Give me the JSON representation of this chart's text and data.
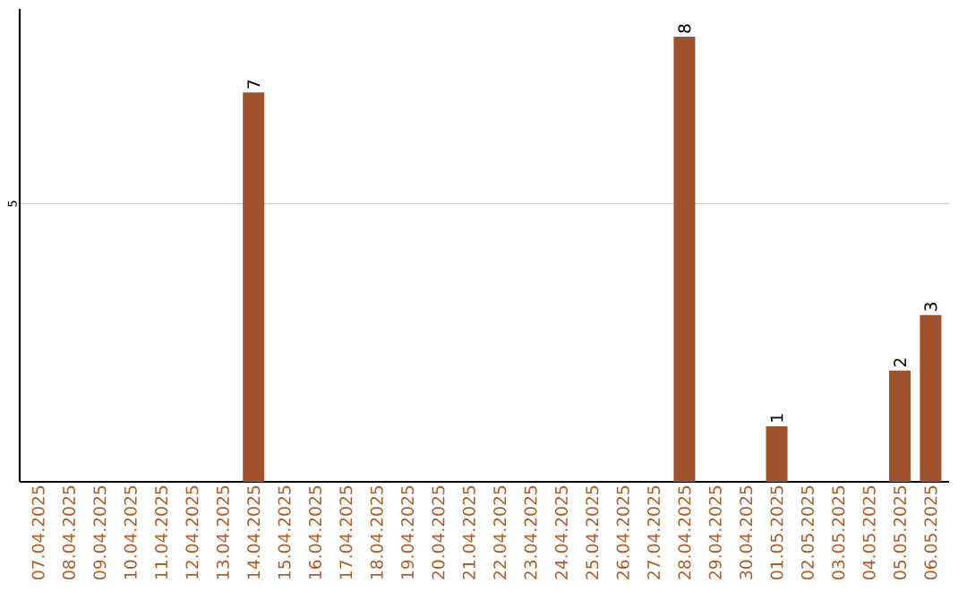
{
  "chart_data": {
    "type": "bar",
    "categories": [
      "07.04.2025",
      "08.04.2025",
      "09.04.2025",
      "10.04.2025",
      "11.04.2025",
      "12.04.2025",
      "13.04.2025",
      "14.04.2025",
      "15.04.2025",
      "16.04.2025",
      "17.04.2025",
      "18.04.2025",
      "19.04.2025",
      "20.04.2025",
      "21.04.2025",
      "22.04.2025",
      "23.04.2025",
      "24.04.2025",
      "25.04.2025",
      "26.04.2025",
      "27.04.2025",
      "28.04.2025",
      "29.04.2025",
      "30.04.2025",
      "01.05.2025",
      "02.05.2025",
      "03.05.2025",
      "04.05.2025",
      "05.05.2025",
      "06.05.2025"
    ],
    "values": [
      0,
      0,
      0,
      0,
      0,
      0,
      0,
      7,
      0,
      0,
      0,
      0,
      0,
      0,
      0,
      0,
      0,
      0,
      0,
      0,
      0,
      8,
      0,
      0,
      1,
      0,
      0,
      0,
      2,
      3
    ],
    "value_labels": [
      null,
      null,
      null,
      null,
      null,
      null,
      null,
      "7",
      null,
      null,
      null,
      null,
      null,
      null,
      null,
      null,
      null,
      null,
      null,
      null,
      null,
      "8",
      null,
      null,
      "1",
      null,
      null,
      null,
      "2",
      "3"
    ],
    "color": "#a0522d",
    "ylim": [
      0,
      8.5
    ],
    "yticks": [
      5
    ],
    "grid": "y"
  }
}
